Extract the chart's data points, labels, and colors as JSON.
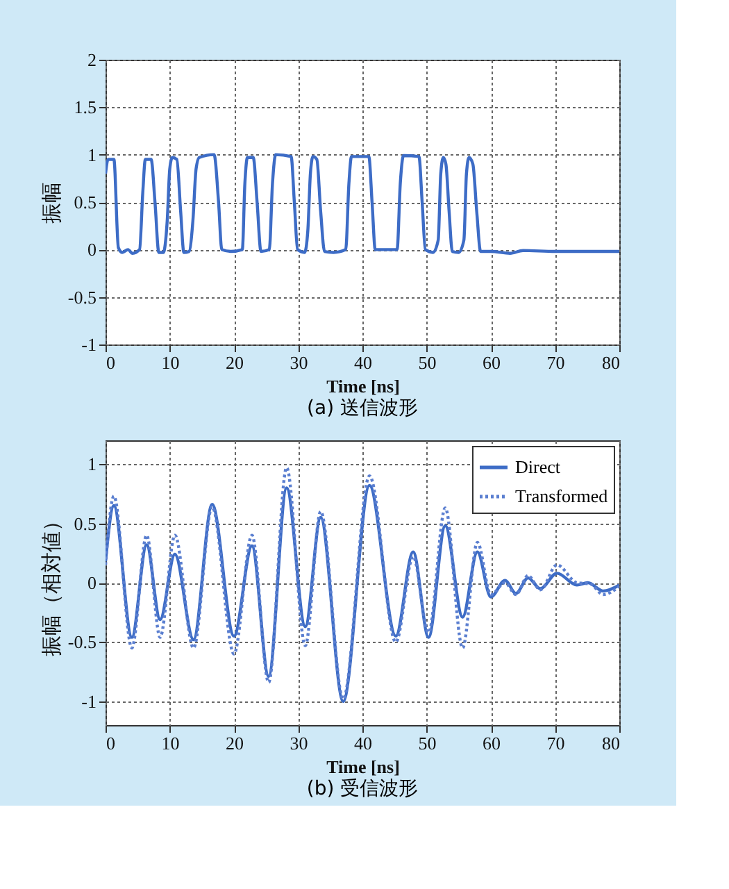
{
  "chart_data": [
    {
      "type": "line",
      "title": "(a) 送信波形",
      "xlabel": "Time  [ns]",
      "ylabel": "振幅",
      "xlim": [
        0,
        80
      ],
      "xticks": [
        0,
        10,
        20,
        30,
        40,
        50,
        60,
        70,
        80
      ],
      "ylim": [
        -1,
        2
      ],
      "yticks": [
        -1,
        -0.5,
        0,
        0.5,
        1,
        1.5,
        2
      ],
      "grid": true,
      "line_style": "solid",
      "series": [
        {
          "color": "#3d6cc6",
          "x": [
            0,
            0.4,
            1.3,
            2.0,
            2.6,
            3.5,
            4.2,
            5.3,
            5.8,
            6.2,
            7.1,
            7.7,
            8.3,
            9.0,
            9.6,
            10.0,
            10.4,
            11.1,
            11.7,
            12.2,
            13.0,
            13.6,
            14.1,
            14.6,
            16.9,
            17.6,
            18.1,
            19.5,
            21.3,
            21.7,
            22.1,
            23.0,
            23.6,
            24.2,
            25.5,
            26.0,
            26.5,
            28.9,
            29.4,
            29.9,
            31.0,
            31.5,
            31.9,
            32.3,
            32.9,
            33.5,
            34.1,
            35.5,
            37.4,
            37.9,
            38.3,
            41.0,
            41.5,
            42.0,
            45.4,
            45.9,
            46.4,
            48.8,
            49.3,
            49.8,
            51.0,
            51.8,
            52.2,
            52.6,
            53.0,
            53.5,
            54.0,
            55.0,
            55.8,
            56.2,
            56.6,
            57.2,
            57.8,
            58.4,
            60,
            63,
            65,
            70,
            75,
            80
          ],
          "values": [
            0.8,
            0.95,
            0.95,
            0.02,
            -0.03,
            0.0,
            -0.04,
            0.0,
            0.6,
            0.95,
            0.95,
            0.5,
            -0.03,
            -0.03,
            0.3,
            0.85,
            0.97,
            0.95,
            0.4,
            -0.03,
            -0.02,
            0.3,
            0.85,
            0.97,
            1.0,
            0.5,
            0.0,
            -0.02,
            0.0,
            0.7,
            0.97,
            0.97,
            0.5,
            -0.02,
            0.0,
            0.7,
            1.0,
            0.98,
            0.5,
            0.0,
            -0.03,
            0.2,
            0.8,
            0.98,
            0.95,
            0.4,
            -0.02,
            -0.03,
            0.0,
            0.7,
            0.98,
            0.98,
            0.5,
            0.0,
            0.0,
            0.7,
            0.99,
            0.98,
            0.5,
            0.0,
            -0.03,
            0.1,
            0.8,
            0.97,
            0.9,
            0.4,
            -0.02,
            -0.03,
            0.1,
            0.8,
            0.97,
            0.9,
            0.4,
            -0.02,
            -0.02,
            -0.04,
            -0.01,
            -0.02,
            -0.02,
            -0.02
          ]
        }
      ]
    },
    {
      "type": "line",
      "title": "(b) 受信波形",
      "xlabel": "Time  [ns]",
      "ylabel": "振幅（相対値）",
      "xlim": [
        0,
        80
      ],
      "xticks": [
        0,
        10,
        20,
        30,
        40,
        50,
        60,
        70,
        80
      ],
      "ylim": [
        -1.2,
        1.2
      ],
      "yticks": [
        -1,
        -0.5,
        0,
        0.5,
        1
      ],
      "grid": true,
      "legend": "top right",
      "series": [
        {
          "name": "Direct",
          "color": "#3d6cc6",
          "line_style": "solid",
          "x": [
            0,
            1.3,
            4.1,
            6.4,
            8.5,
            10.8,
            13.7,
            16.6,
            20.0,
            22.8,
            25.4,
            28.2,
            31.1,
            33.5,
            37.0,
            41.1,
            45.2,
            47.9,
            50.3,
            52.9,
            55.6,
            57.9,
            60.0,
            62.2,
            63.9,
            65.8,
            67.7,
            70.3,
            73.4,
            75.1,
            77.5,
            80
          ],
          "values": [
            0.18,
            0.65,
            -0.46,
            0.32,
            -0.31,
            0.24,
            -0.48,
            0.66,
            -0.45,
            0.31,
            -0.79,
            0.8,
            -0.37,
            0.55,
            -1.0,
            0.82,
            -0.45,
            0.26,
            -0.46,
            0.48,
            -0.29,
            0.26,
            -0.12,
            0.02,
            -0.09,
            0.04,
            -0.05,
            0.08,
            -0.02,
            0.0,
            -0.07,
            -0.02
          ]
        },
        {
          "name": "Transformed",
          "color": "#5b7fd0",
          "line_style": "dotted",
          "x": [
            0,
            1.3,
            4.1,
            6.4,
            8.5,
            10.8,
            13.7,
            16.6,
            20.0,
            22.8,
            25.4,
            28.2,
            31.1,
            33.5,
            37.0,
            41.1,
            45.2,
            47.9,
            50.3,
            52.9,
            55.6,
            57.9,
            60.0,
            62.2,
            63.9,
            65.8,
            67.7,
            70.3,
            73.4,
            75.5,
            77.5,
            80
          ],
          "values": [
            0.15,
            0.73,
            -0.55,
            0.4,
            -0.46,
            0.4,
            -0.55,
            0.64,
            -0.6,
            0.4,
            -0.84,
            0.97,
            -0.53,
            0.6,
            -0.98,
            0.9,
            -0.5,
            0.22,
            -0.42,
            0.63,
            -0.55,
            0.34,
            -0.1,
            0.0,
            -0.1,
            0.06,
            -0.06,
            0.15,
            0.0,
            -0.01,
            -0.1,
            -0.03
          ]
        }
      ]
    }
  ]
}
